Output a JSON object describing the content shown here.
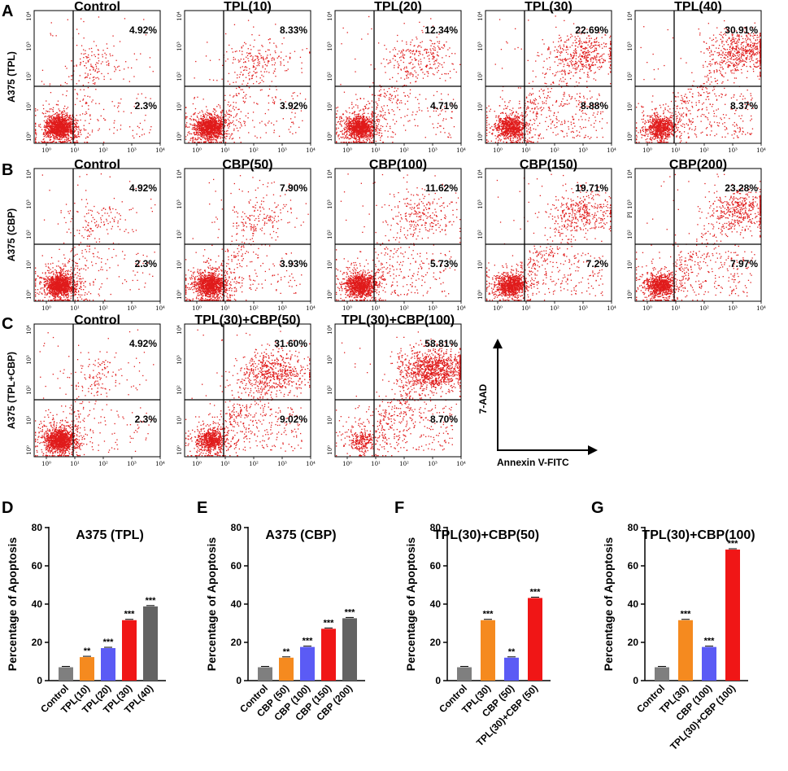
{
  "panels": {
    "A": "A",
    "B": "B",
    "C": "C",
    "D": "D",
    "E": "E",
    "F": "F",
    "G": "G"
  },
  "flow_axis_ticks": {
    "x": [
      "10⁰",
      "10¹",
      "10²",
      "10³",
      "10⁴"
    ],
    "y": [
      "10⁰",
      "10¹",
      "10²",
      "10³",
      "10⁴"
    ]
  },
  "legend": {
    "y_axis": "7-AAD",
    "x_axis": "Annexin V-FITC"
  },
  "pi_label": "PI",
  "flow_rows": [
    {
      "label": "A375 (TPL)",
      "plots": [
        {
          "title": "Control",
          "upper_right": "4.92%",
          "lower_right": "2.3%",
          "late_fraction": 0.0492,
          "early_fraction": 0.023
        },
        {
          "title": "TPL(10)",
          "upper_right": "8.33%",
          "lower_right": "3.92%",
          "late_fraction": 0.0833,
          "early_fraction": 0.0392
        },
        {
          "title": "TPL(20)",
          "upper_right": "12.34%",
          "lower_right": "4.71%",
          "late_fraction": 0.1234,
          "early_fraction": 0.0471
        },
        {
          "title": "TPL(30)",
          "upper_right": "22.69%",
          "lower_right": "8.88%",
          "late_fraction": 0.2269,
          "early_fraction": 0.0888
        },
        {
          "title": "TPL(40)",
          "upper_right": "30.91%",
          "lower_right": "8.37%",
          "late_fraction": 0.3091,
          "early_fraction": 0.0837
        }
      ]
    },
    {
      "label": "A375 (CBP)",
      "plots": [
        {
          "title": "Control",
          "upper_right": "4.92%",
          "lower_right": "2.3%",
          "late_fraction": 0.0492,
          "early_fraction": 0.023
        },
        {
          "title": "CBP(50)",
          "upper_right": "7.90%",
          "lower_right": "3.93%",
          "late_fraction": 0.079,
          "early_fraction": 0.0393
        },
        {
          "title": "CBP(100)",
          "upper_right": "11.62%",
          "lower_right": "5.73%",
          "late_fraction": 0.1162,
          "early_fraction": 0.0573
        },
        {
          "title": "CBP(150)",
          "upper_right": "19.71%",
          "lower_right": "7.2%",
          "late_fraction": 0.1971,
          "early_fraction": 0.072
        },
        {
          "title": "CBP(200)",
          "upper_right": "23.28%",
          "lower_right": "7.97%",
          "late_fraction": 0.2328,
          "early_fraction": 0.0797
        }
      ]
    },
    {
      "label": "A375 (TPL+CBP)",
      "plots": [
        {
          "title": "Control",
          "upper_right": "4.92%",
          "lower_right": "2.3%",
          "late_fraction": 0.0492,
          "early_fraction": 0.023
        },
        {
          "title": "TPL(30)+CBP(50)",
          "upper_right": "31.60%",
          "lower_right": "9.02%",
          "late_fraction": 0.316,
          "early_fraction": 0.0902
        },
        {
          "title": "TPL(30)+CBP(100)",
          "upper_right": "58.81%",
          "lower_right": "8.70%",
          "late_fraction": 0.5881,
          "early_fraction": 0.087
        }
      ]
    }
  ],
  "chart_data": [
    {
      "type": "bar",
      "title": "A375 (TPL)",
      "ylabel": "Percentage of Apoptosis",
      "xlabel": "",
      "ylim": [
        0,
        80
      ],
      "yticks": [
        "0",
        "20",
        "40",
        "60",
        "80"
      ],
      "categories": [
        "Control",
        "TPL(10)",
        "TPL(20)",
        "TPL(30)",
        "TPL(40)"
      ],
      "values": [
        7,
        12.3,
        17,
        31.6,
        38.8
      ],
      "significance": [
        "",
        "**",
        "***",
        "***",
        "***"
      ],
      "colors": [
        "#7f7f7f",
        "#f58a1f",
        "#5b5bf5",
        "#f01616",
        "#636363"
      ]
    },
    {
      "type": "bar",
      "title": "A375 (CBP)",
      "ylabel": "Percentage of Apoptosis",
      "xlabel": "",
      "ylim": [
        0,
        80
      ],
      "yticks": [
        "0",
        "20",
        "40",
        "60",
        "80"
      ],
      "categories": [
        "Control",
        "CBP (50)",
        "CBP (100)",
        "CBP (150)",
        "CBP (200)"
      ],
      "values": [
        7,
        12,
        17.6,
        27.1,
        32.6
      ],
      "significance": [
        "",
        "**",
        "***",
        "***",
        "***"
      ],
      "colors": [
        "#7f7f7f",
        "#f58a1f",
        "#5b5bf5",
        "#f01616",
        "#636363"
      ]
    },
    {
      "type": "bar",
      "title": "TPL(30)+CBP(50)",
      "ylabel": "Percentage of Apoptosis",
      "xlabel": "",
      "ylim": [
        0,
        80
      ],
      "yticks": [
        "0",
        "20",
        "40",
        "60",
        "80"
      ],
      "categories": [
        "Control",
        "TPL(30)",
        "CBP (50)",
        "TPL(30)+CBP (50)"
      ],
      "values": [
        7,
        31.6,
        12,
        43.2
      ],
      "significance": [
        "",
        "***",
        "**",
        "***"
      ],
      "colors": [
        "#7f7f7f",
        "#f58a1f",
        "#5b5bf5",
        "#f01616"
      ]
    },
    {
      "type": "bar",
      "title": "TPL(30)+CBP(100)",
      "ylabel": "Percentage of Apoptosis",
      "xlabel": "",
      "ylim": [
        0,
        80
      ],
      "yticks": [
        "0",
        "20",
        "40",
        "60",
        "80"
      ],
      "categories": [
        "Control",
        "TPL(30)",
        "CBP (100)",
        "TPL(30)+CBP (100)"
      ],
      "values": [
        7,
        31.6,
        17.6,
        68.5
      ],
      "significance": [
        "",
        "***",
        "***",
        "***"
      ],
      "colors": [
        "#7f7f7f",
        "#f58a1f",
        "#5b5bf5",
        "#f01616"
      ]
    }
  ]
}
